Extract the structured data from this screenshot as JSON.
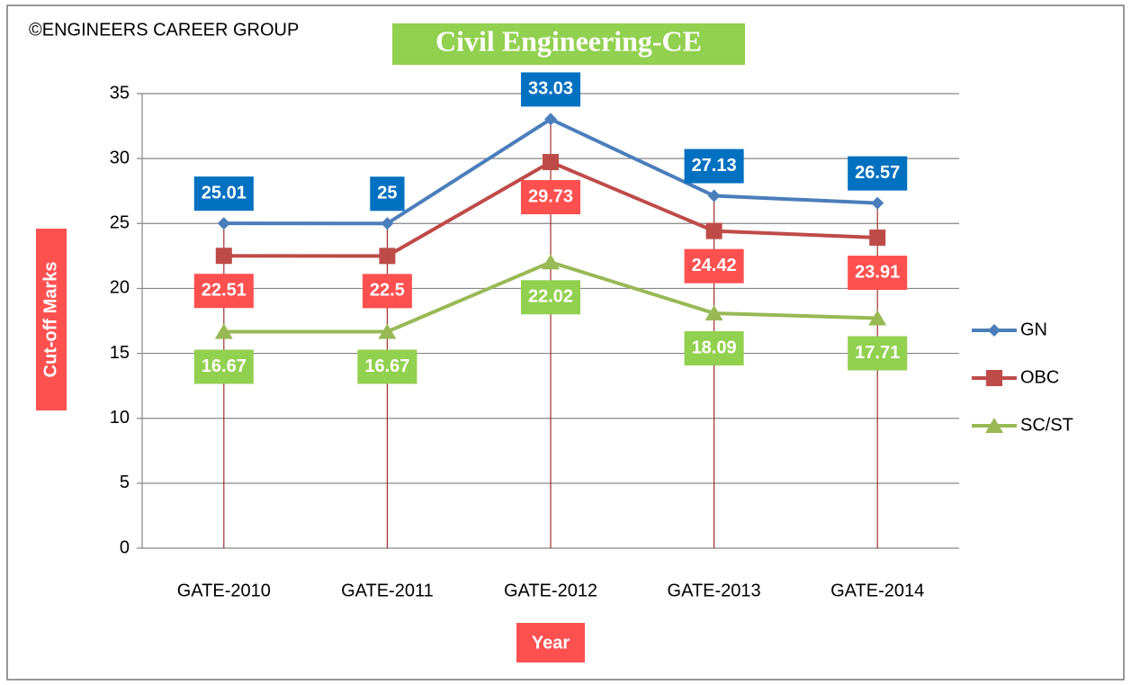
{
  "chart_data": {
    "type": "line",
    "title": "Civil Engineering-CE",
    "copyright": "©ENGINEERS CAREER GROUP",
    "y_label": "Cut-off Marks",
    "x_label": "Year",
    "categories": [
      "GATE-2010",
      "GATE-2011",
      "GATE-2012",
      "GATE-2013",
      "GATE-2014"
    ],
    "series": [
      {
        "name": "GN",
        "color": "#4a7ebb",
        "label_color": "#0070c0",
        "marker": "diamond",
        "values": [
          25.01,
          25,
          33.03,
          27.13,
          26.57
        ]
      },
      {
        "name": "OBC",
        "color": "#be4b48",
        "label_color": "#ff5050",
        "marker": "square",
        "values": [
          22.51,
          22.5,
          29.73,
          24.42,
          23.91
        ]
      },
      {
        "name": "SC/ST",
        "color": "#98b954",
        "label_color": "#92d050",
        "marker": "triangle",
        "values": [
          16.67,
          16.67,
          22.02,
          18.09,
          17.71
        ]
      }
    ],
    "ylim": [
      0,
      35
    ],
    "yticks": [
      0,
      5,
      10,
      15,
      20,
      25,
      30,
      35
    ],
    "grid": true,
    "legend": "right"
  }
}
